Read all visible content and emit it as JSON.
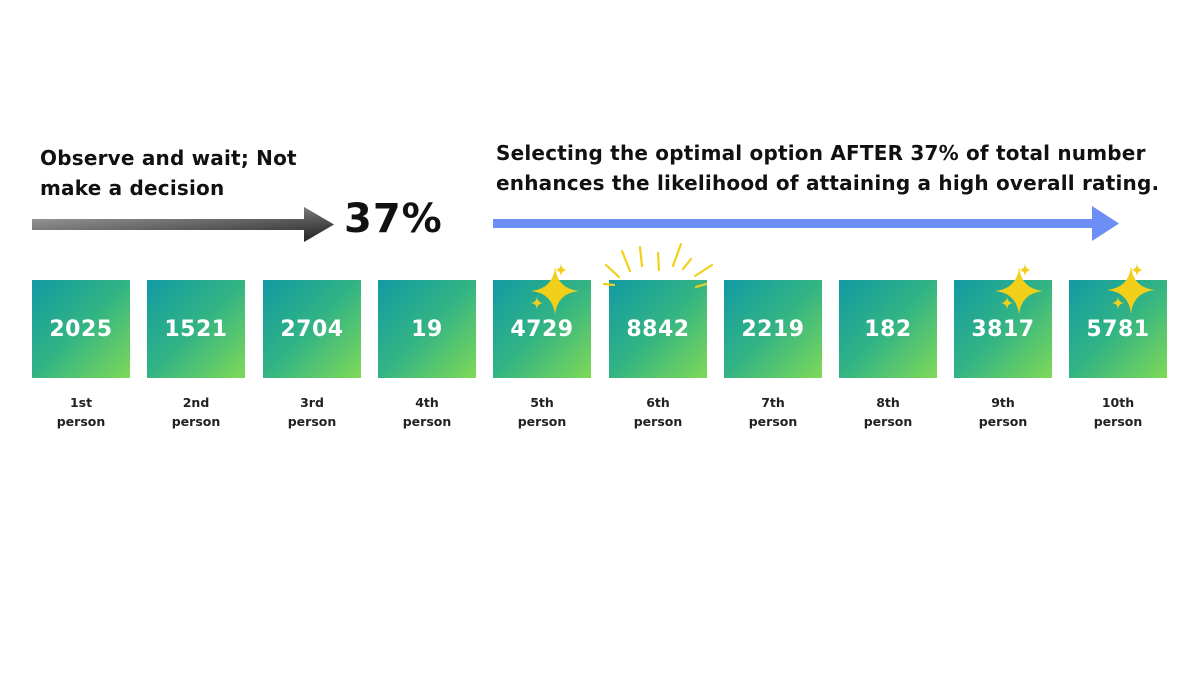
{
  "left_caption": "Observe and wait; Not make a decision",
  "threshold_label": "37%",
  "right_caption": {
    "line1": "Selecting the optimal option AFTER 37% of total number",
    "line2": "enhances the likelihood of attaining a high overall rating."
  },
  "colors": {
    "left_arrow": "#555555",
    "right_arrow": "#6c8ef5",
    "box_gradient_start": "#119aa3",
    "box_gradient_end": "#7ed957",
    "sparkle": "#f2d019"
  },
  "candidates": [
    {
      "value": "2025",
      "ordinal": "1st",
      "unit": "person"
    },
    {
      "value": "1521",
      "ordinal": "2nd",
      "unit": "person"
    },
    {
      "value": "2704",
      "ordinal": "3rd",
      "unit": "person"
    },
    {
      "value": "19",
      "ordinal": "4th",
      "unit": "person"
    },
    {
      "value": "4729",
      "ordinal": "5th",
      "unit": "person",
      "decoration": "sparkle-icon"
    },
    {
      "value": "8842",
      "ordinal": "6th",
      "unit": "person",
      "decoration": "burst-icon"
    },
    {
      "value": "2219",
      "ordinal": "7th",
      "unit": "person"
    },
    {
      "value": "182",
      "ordinal": "8th",
      "unit": "person"
    },
    {
      "value": "3817",
      "ordinal": "9th",
      "unit": "person",
      "decoration": "sparkle-icon"
    },
    {
      "value": "5781",
      "ordinal": "10th",
      "unit": "person",
      "decoration": "sparkle-icon"
    }
  ]
}
